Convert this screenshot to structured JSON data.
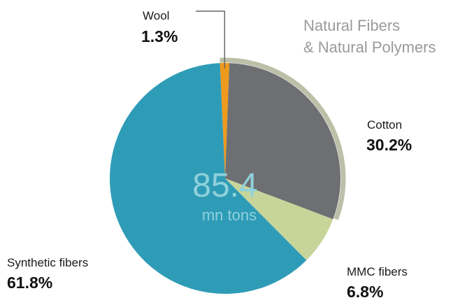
{
  "chart_data": {
    "type": "pie",
    "center_value": "85.4",
    "center_unit": "mn tons",
    "group_label_line1": "Natural Fibers",
    "group_label_line2": "& Natural Polymers",
    "slices": [
      {
        "name": "Wool",
        "value": 1.3,
        "label": "1.3%",
        "color": "#ee9a1d"
      },
      {
        "name": "Cotton",
        "value": 30.2,
        "label": "30.2%",
        "color": "#6e6f72"
      },
      {
        "name": "MMC fibers",
        "value": 6.8,
        "label": "6.8%",
        "color": "#c8d59a"
      },
      {
        "name": "Synthetic fibers",
        "value": 61.8,
        "label": "61.8%",
        "color": "#2f9cb7"
      }
    ],
    "outline_color": "#bdbfa8"
  }
}
